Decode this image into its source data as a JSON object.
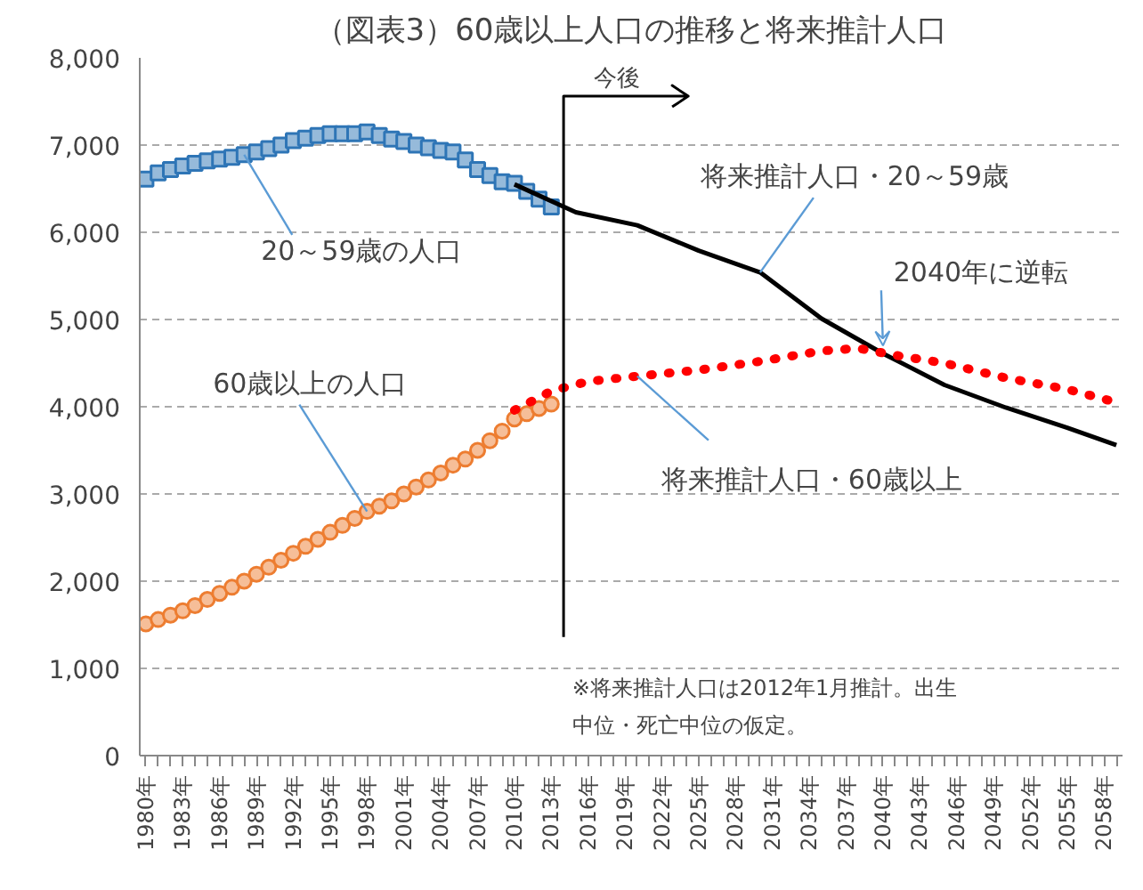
{
  "chart_data": {
    "type": "line",
    "title": "（図表3）60歳以上人口の推移と将来推計人口",
    "xlim": [
      1979.5,
      2059.5
    ],
    "ylim": [
      0,
      8000
    ],
    "xticks": [
      {
        "value": 1980,
        "label": "1980年"
      },
      {
        "value": 1981,
        "label": null
      },
      {
        "value": 1982,
        "label": null
      },
      {
        "value": 1983,
        "label": "1983年"
      },
      {
        "value": 1984,
        "label": null
      },
      {
        "value": 1985,
        "label": null
      },
      {
        "value": 1986,
        "label": "1986年"
      },
      {
        "value": 1987,
        "label": null
      },
      {
        "value": 1988,
        "label": null
      },
      {
        "value": 1989,
        "label": "1989年"
      },
      {
        "value": 1990,
        "label": null
      },
      {
        "value": 1991,
        "label": null
      },
      {
        "value": 1992,
        "label": "1992年"
      },
      {
        "value": 1993,
        "label": null
      },
      {
        "value": 1994,
        "label": null
      },
      {
        "value": 1995,
        "label": "1995年"
      },
      {
        "value": 1996,
        "label": null
      },
      {
        "value": 1997,
        "label": null
      },
      {
        "value": 1998,
        "label": "1998年"
      },
      {
        "value": 1999,
        "label": null
      },
      {
        "value": 2000,
        "label": null
      },
      {
        "value": 2001,
        "label": "2001年"
      },
      {
        "value": 2002,
        "label": null
      },
      {
        "value": 2003,
        "label": null
      },
      {
        "value": 2004,
        "label": "2004年"
      },
      {
        "value": 2005,
        "label": null
      },
      {
        "value": 2006,
        "label": null
      },
      {
        "value": 2007,
        "label": "2007年"
      },
      {
        "value": 2008,
        "label": null
      },
      {
        "value": 2009,
        "label": null
      },
      {
        "value": 2010,
        "label": "2010年"
      },
      {
        "value": 2011,
        "label": null
      },
      {
        "value": 2012,
        "label": null
      },
      {
        "value": 2013,
        "label": "2013年"
      },
      {
        "value": 2014,
        "label": null
      },
      {
        "value": 2015,
        "label": null
      },
      {
        "value": 2016,
        "label": "2016年"
      },
      {
        "value": 2017,
        "label": null
      },
      {
        "value": 2018,
        "label": null
      },
      {
        "value": 2019,
        "label": "2019年"
      },
      {
        "value": 2020,
        "label": null
      },
      {
        "value": 2021,
        "label": null
      },
      {
        "value": 2022,
        "label": "2022年"
      },
      {
        "value": 2023,
        "label": null
      },
      {
        "value": 2024,
        "label": null
      },
      {
        "value": 2025,
        "label": "2025年"
      },
      {
        "value": 2026,
        "label": null
      },
      {
        "value": 2027,
        "label": null
      },
      {
        "value": 2028,
        "label": "2028年"
      },
      {
        "value": 2029,
        "label": null
      },
      {
        "value": 2030,
        "label": null
      },
      {
        "value": 2031,
        "label": "2031年"
      },
      {
        "value": 2032,
        "label": null
      },
      {
        "value": 2033,
        "label": null
      },
      {
        "value": 2034,
        "label": "2034年"
      },
      {
        "value": 2035,
        "label": null
      },
      {
        "value": 2036,
        "label": null
      },
      {
        "value": 2037,
        "label": "2037年"
      },
      {
        "value": 2038,
        "label": null
      },
      {
        "value": 2039,
        "label": null
      },
      {
        "value": 2040,
        "label": "2040年"
      },
      {
        "value": 2041,
        "label": null
      },
      {
        "value": 2042,
        "label": null
      },
      {
        "value": 2043,
        "label": "2043年"
      },
      {
        "value": 2044,
        "label": null
      },
      {
        "value": 2045,
        "label": null
      },
      {
        "value": 2046,
        "label": "2046年"
      },
      {
        "value": 2047,
        "label": null
      },
      {
        "value": 2048,
        "label": null
      },
      {
        "value": 2049,
        "label": "2049年"
      },
      {
        "value": 2050,
        "label": null
      },
      {
        "value": 2051,
        "label": null
      },
      {
        "value": 2052,
        "label": "2052年"
      },
      {
        "value": 2053,
        "label": null
      },
      {
        "value": 2054,
        "label": null
      },
      {
        "value": 2055,
        "label": "2055年"
      },
      {
        "value": 2056,
        "label": null
      },
      {
        "value": 2057,
        "label": null
      },
      {
        "value": 2058,
        "label": "2058年"
      },
      {
        "value": 2059,
        "label": null
      }
    ],
    "yticks": [
      0,
      {
        "value": 1000,
        "label": "1,000"
      },
      {
        "value": 2000,
        "label": "2,000"
      },
      {
        "value": 3000,
        "label": "3,000"
      },
      {
        "value": 4000,
        "label": "4,000"
      },
      {
        "value": 5000,
        "label": "5,000"
      },
      {
        "value": 6000,
        "label": "6,000"
      },
      {
        "value": 7000,
        "label": "7,000"
      },
      {
        "value": 8000,
        "label": "8,000"
      }
    ],
    "grid": "y",
    "legend": false,
    "series": [
      {
        "name": "20～59歳の人口",
        "type": "scatter",
        "color": "#2e75b6",
        "marker": "square",
        "x": [
          1980,
          1981,
          1982,
          1983,
          1984,
          1985,
          1986,
          1987,
          1988,
          1989,
          1990,
          1991,
          1992,
          1993,
          1994,
          1995,
          1996,
          1997,
          1998,
          1999,
          2000,
          2001,
          2002,
          2003,
          2004,
          2005,
          2006,
          2007,
          2008,
          2009,
          2010,
          2011,
          2012,
          2013
        ],
        "values": [
          6610,
          6680,
          6720,
          6760,
          6790,
          6820,
          6840,
          6860,
          6890,
          6920,
          6960,
          7000,
          7050,
          7080,
          7110,
          7130,
          7130,
          7130,
          7150,
          7110,
          7070,
          7040,
          7000,
          6970,
          6940,
          6920,
          6830,
          6720,
          6650,
          6580,
          6560,
          6470,
          6380,
          6290
        ]
      },
      {
        "name": "60歳以上の人口",
        "type": "scatter",
        "color": "#ed7d31",
        "marker": "circle",
        "x": [
          1980,
          1981,
          1982,
          1983,
          1984,
          1985,
          1986,
          1987,
          1988,
          1989,
          1990,
          1991,
          1992,
          1993,
          1994,
          1995,
          1996,
          1997,
          1998,
          1999,
          2000,
          2001,
          2002,
          2003,
          2004,
          2005,
          2006,
          2007,
          2008,
          2009,
          2010,
          2011,
          2012,
          2013
        ],
        "values": [
          1510,
          1560,
          1610,
          1660,
          1720,
          1790,
          1860,
          1930,
          2000,
          2080,
          2160,
          2240,
          2320,
          2400,
          2480,
          2560,
          2640,
          2720,
          2800,
          2860,
          2920,
          3000,
          3080,
          3160,
          3240,
          3330,
          3400,
          3500,
          3610,
          3720,
          3860,
          3920,
          3980,
          4030
        ]
      },
      {
        "name": "将来推計人口・20～59歳",
        "color": "#000000",
        "marker": "none",
        "line_style": "solid",
        "x": [
          2010,
          2015,
          2020,
          2025,
          2030,
          2035,
          2040,
          2045,
          2050,
          2055,
          2059
        ],
        "values": [
          6550,
          6230,
          6080,
          5790,
          5540,
          5010,
          4610,
          4250,
          3990,
          3760,
          3560
        ]
      },
      {
        "name": "将来推計人口・60歳以上",
        "color": "#ff0000",
        "marker": "none",
        "line_style": "dotted",
        "x": [
          2010,
          2013,
          2016,
          2020,
          2025,
          2030,
          2035,
          2038,
          2041,
          2045,
          2050,
          2055,
          2059
        ],
        "values": [
          3960,
          4180,
          4290,
          4350,
          4420,
          4520,
          4640,
          4670,
          4590,
          4500,
          4330,
          4200,
          4050
        ]
      }
    ],
    "ref_lines": [
      {
        "axis": "x",
        "value": 2014,
        "label": "今後",
        "color": "#000000"
      }
    ],
    "annotations": [
      {
        "text": "2040年に逆転",
        "x": 2040,
        "y": 4640
      },
      "※将来推計人口は2012年1月推計。出生中位・死亡中位の仮定。"
    ]
  }
}
